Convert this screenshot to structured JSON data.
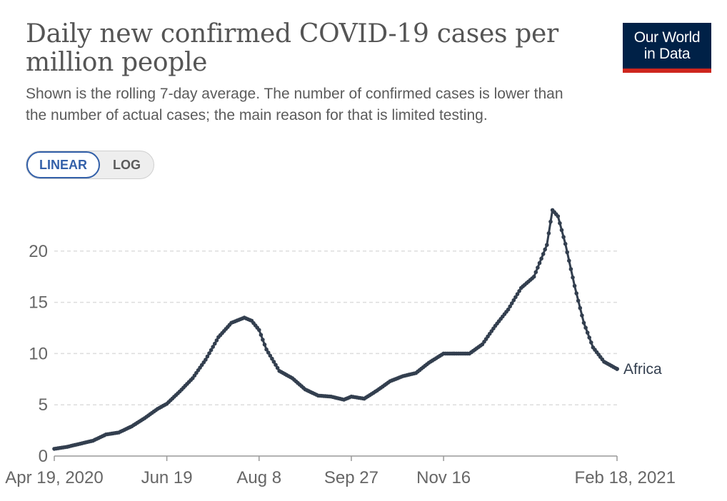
{
  "header": {
    "title_line1": "Daily new confirmed COVID-19 cases per",
    "title_line2": "million people",
    "subtitle_line1": "Shown is the rolling 7-day average. The number of confirmed cases is lower than",
    "subtitle_line2": "the number of actual cases; the main reason for that is limited testing."
  },
  "logo": {
    "line1": "Our World",
    "line2": "in Data"
  },
  "toggle": {
    "linear_label": "LINEAR",
    "log_label": "LOG",
    "active": "linear"
  },
  "colors": {
    "line": "#333f4f",
    "grid": "#dddddd",
    "axis": "#999999"
  },
  "chart_data": {
    "type": "line",
    "title": "Daily new confirmed COVID-19 cases per million people",
    "xlabel": "",
    "ylabel": "",
    "ylim": [
      0,
      25
    ],
    "yticks": [
      0,
      5,
      10,
      15,
      20
    ],
    "xlim": [
      "2020-04-19",
      "2021-02-18"
    ],
    "xticks": [
      {
        "date": "2020-04-19",
        "label": "Apr 19, 2020"
      },
      {
        "date": "2020-06-19",
        "label": "Jun 19"
      },
      {
        "date": "2020-08-08",
        "label": "Aug 8"
      },
      {
        "date": "2020-09-27",
        "label": "Sep 27"
      },
      {
        "date": "2020-11-16",
        "label": "Nov 16"
      },
      {
        "date": "2021-02-18",
        "label": "Feb 18, 2021"
      }
    ],
    "grid": "horizontal",
    "series": [
      {
        "name": "Africa",
        "points": [
          [
            "2020-04-19",
            0.7
          ],
          [
            "2020-04-26",
            0.9
          ],
          [
            "2020-05-03",
            1.2
          ],
          [
            "2020-05-10",
            1.5
          ],
          [
            "2020-05-17",
            2.1
          ],
          [
            "2020-05-24",
            2.3
          ],
          [
            "2020-05-31",
            2.9
          ],
          [
            "2020-06-07",
            3.7
          ],
          [
            "2020-06-14",
            4.6
          ],
          [
            "2020-06-19",
            5.1
          ],
          [
            "2020-06-26",
            6.3
          ],
          [
            "2020-07-03",
            7.6
          ],
          [
            "2020-07-10",
            9.4
          ],
          [
            "2020-07-17",
            11.6
          ],
          [
            "2020-07-24",
            13.0
          ],
          [
            "2020-07-31",
            13.5
          ],
          [
            "2020-08-04",
            13.2
          ],
          [
            "2020-08-08",
            12.3
          ],
          [
            "2020-08-12",
            10.4
          ],
          [
            "2020-08-19",
            8.3
          ],
          [
            "2020-08-26",
            7.6
          ],
          [
            "2020-09-02",
            6.5
          ],
          [
            "2020-09-09",
            5.9
          ],
          [
            "2020-09-16",
            5.8
          ],
          [
            "2020-09-23",
            5.5
          ],
          [
            "2020-09-27",
            5.8
          ],
          [
            "2020-10-04",
            5.6
          ],
          [
            "2020-10-11",
            6.4
          ],
          [
            "2020-10-18",
            7.3
          ],
          [
            "2020-10-25",
            7.8
          ],
          [
            "2020-11-01",
            8.1
          ],
          [
            "2020-11-08",
            9.1
          ],
          [
            "2020-11-16",
            10.0
          ],
          [
            "2020-11-23",
            10.0
          ],
          [
            "2020-11-30",
            10.0
          ],
          [
            "2020-12-07",
            10.9
          ],
          [
            "2020-12-14",
            12.7
          ],
          [
            "2020-12-21",
            14.3
          ],
          [
            "2020-12-28",
            16.4
          ],
          [
            "2021-01-04",
            17.5
          ],
          [
            "2021-01-11",
            20.6
          ],
          [
            "2021-01-14",
            24.0
          ],
          [
            "2021-01-17",
            23.4
          ],
          [
            "2021-01-21",
            20.7
          ],
          [
            "2021-01-26",
            16.6
          ],
          [
            "2021-01-31",
            13.0
          ],
          [
            "2021-02-05",
            10.6
          ],
          [
            "2021-02-11",
            9.2
          ],
          [
            "2021-02-18",
            8.5
          ]
        ]
      }
    ]
  }
}
